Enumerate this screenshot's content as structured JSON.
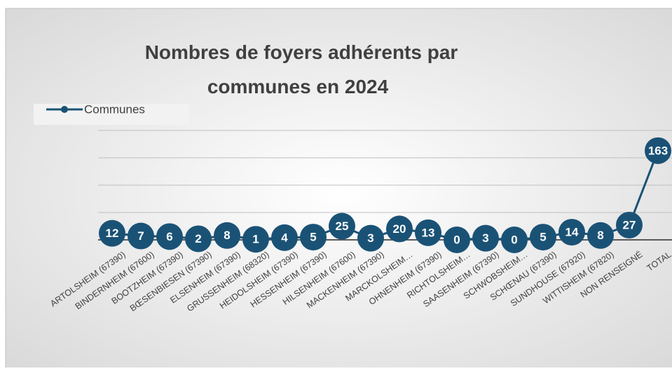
{
  "chart_data": {
    "type": "line",
    "title": "Nombres de foyers adhérents par communes en 2024",
    "categories": [
      "ARTOLSHEIM (67390)",
      "BINDERNHEIM (67600)",
      "BOOTZHEIM (67390)",
      "BŒSENBIESEN (67390)",
      "ELSENHEIM (67390)",
      "GRUSSENHEIM (68320)",
      "HEIDOLSHEIM (67390)",
      "HESSENHEIM (67390)",
      "HILSENHEIM (67600)",
      "MACKENHEIM (67390)",
      "MARCKOLSHEIM…",
      "OHNENHEIM (67390)",
      "RICHTOLSHEIM…",
      "SAASENHEIM (67390)",
      "SCHWOBSHEIM…",
      "SCHŒNAU (67390)",
      "SUNDHOUSE (67920)",
      "WITTISHEIM (67820)",
      "NON RENSEIGNÉ",
      "TOTAL"
    ],
    "series": [
      {
        "name": "Communes",
        "color": "#1a5276",
        "values": [
          12,
          7,
          6,
          2,
          8,
          1,
          4,
          5,
          25,
          3,
          20,
          13,
          0,
          3,
          0,
          5,
          14,
          8,
          27,
          163
        ]
      }
    ],
    "ylim": [
      0,
      200
    ],
    "yticks": [
      0,
      50,
      100,
      150,
      200
    ],
    "grid": true,
    "legend": "top-left"
  }
}
